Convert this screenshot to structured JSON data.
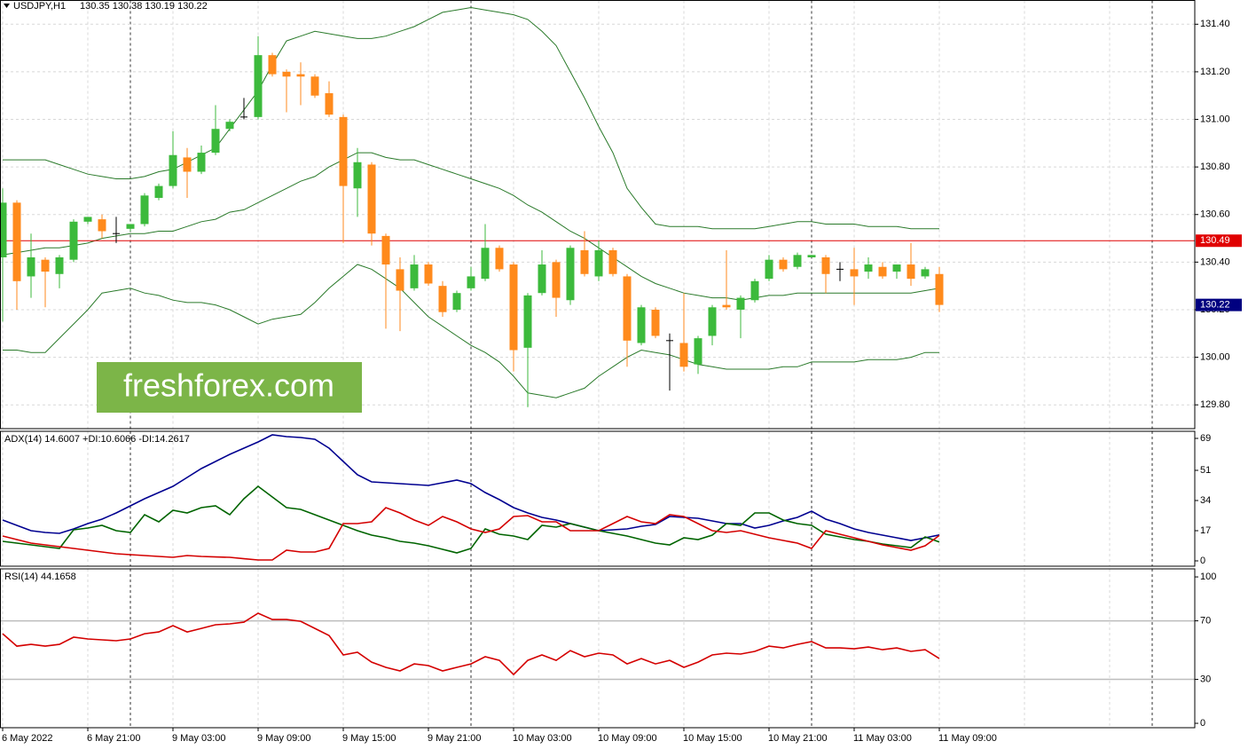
{
  "chart_data": [
    {
      "type": "candlestick",
      "title": "USDJPY,H1",
      "ohlc_label": "130.35 130.38 130.19 130.22",
      "watermark": "freshforex.com",
      "categories": [
        "6 May 2022",
        null,
        null,
        null,
        null,
        null,
        "6 May 21:00",
        null,
        null,
        null,
        null,
        null,
        "9 May 03:00",
        null,
        null,
        null,
        null,
        null,
        "9 May 09:00",
        null,
        null,
        null,
        null,
        null,
        "9 May 15:00",
        null,
        null,
        null,
        null,
        null,
        "9 May 21:00",
        null,
        null,
        null,
        null,
        null,
        "10 May 03:00",
        null,
        null,
        null,
        null,
        null,
        "10 May 09:00",
        null,
        null,
        null,
        null,
        null,
        "10 May 15:00",
        null,
        null,
        null,
        null,
        null,
        "10 May 21:00",
        null,
        null,
        null,
        null,
        null,
        "11 May 03:00",
        null,
        null,
        null,
        null,
        null,
        "11 May 09:00"
      ],
      "open": [
        130.42,
        130.65,
        130.34,
        130.41,
        130.35,
        130.41,
        130.57,
        130.58,
        130.52,
        130.54,
        130.56,
        130.67,
        130.72,
        130.84,
        130.78,
        130.86,
        130.96,
        131.01,
        131.01,
        131.27,
        131.2,
        131.19,
        131.18,
        131.11,
        131.01,
        130.71,
        130.81,
        130.51,
        130.37,
        130.29,
        130.39,
        130.3,
        130.2,
        130.29,
        130.33,
        130.46,
        130.39,
        130.04,
        130.27,
        130.4,
        130.24,
        130.45,
        130.34,
        130.45,
        130.34,
        130.06,
        130.2,
        130.07,
        130.06,
        129.97,
        130.09,
        130.22,
        130.2,
        130.24,
        130.33,
        130.41,
        130.38,
        130.42,
        130.42,
        130.37,
        130.37,
        130.36,
        130.38,
        130.36,
        130.39,
        130.34,
        130.35
      ],
      "high": [
        130.71,
        130.66,
        130.52,
        130.42,
        130.43,
        130.58,
        130.59,
        130.6,
        130.59,
        130.56,
        130.69,
        130.73,
        130.95,
        130.88,
        130.89,
        131.06,
        131.0,
        131.09,
        131.35,
        131.28,
        131.21,
        131.24,
        131.19,
        131.16,
        131.02,
        130.88,
        130.82,
        130.52,
        130.42,
        130.43,
        130.4,
        130.32,
        130.28,
        130.38,
        130.56,
        130.47,
        130.4,
        130.27,
        130.45,
        130.41,
        130.47,
        130.53,
        130.49,
        130.46,
        130.35,
        130.22,
        130.21,
        130.1,
        130.27,
        130.09,
        130.22,
        130.45,
        130.26,
        130.33,
        130.43,
        130.42,
        130.44,
        130.43,
        130.43,
        130.4,
        130.46,
        130.42,
        130.4,
        130.39,
        130.48,
        130.38,
        130.38
      ],
      "low": [
        130.15,
        130.2,
        130.25,
        130.21,
        130.29,
        130.4,
        130.56,
        130.5,
        130.48,
        130.53,
        130.55,
        130.66,
        130.71,
        130.67,
        130.77,
        130.85,
        130.95,
        131.0,
        131.0,
        131.18,
        131.03,
        131.06,
        131.09,
        131.01,
        130.48,
        130.59,
        130.47,
        130.12,
        130.11,
        130.28,
        130.3,
        130.17,
        130.19,
        130.28,
        130.32,
        130.36,
        129.94,
        129.79,
        130.26,
        130.17,
        130.22,
        130.34,
        130.32,
        130.34,
        129.96,
        130.05,
        130.08,
        129.86,
        129.94,
        129.93,
        130.05,
        130.2,
        130.08,
        130.23,
        130.32,
        130.36,
        130.37,
        130.42,
        130.27,
        130.32,
        130.22,
        130.33,
        130.33,
        130.33,
        130.3,
        130.33,
        130.19
      ],
      "close": [
        130.65,
        130.32,
        130.42,
        130.36,
        130.42,
        130.57,
        130.59,
        130.53,
        130.52,
        130.56,
        130.68,
        130.72,
        130.85,
        130.78,
        130.86,
        130.96,
        130.99,
        131.01,
        131.27,
        131.19,
        131.18,
        131.18,
        131.1,
        131.02,
        130.72,
        130.82,
        130.52,
        130.39,
        130.28,
        130.39,
        130.31,
        130.19,
        130.27,
        130.34,
        130.46,
        130.37,
        130.03,
        130.26,
        130.39,
        130.25,
        130.46,
        130.35,
        130.45,
        130.35,
        130.07,
        130.21,
        130.09,
        130.07,
        129.96,
        130.08,
        130.21,
        130.21,
        130.25,
        130.32,
        130.41,
        130.37,
        130.43,
        130.43,
        130.35,
        130.37,
        130.34,
        130.39,
        130.34,
        130.39,
        130.33,
        130.37,
        130.22
      ],
      "up_color": "#3cba3c",
      "down_color": "#ff8a1c",
      "series": [
        {
          "color": "#2a7a2a",
          "values": [
            130.83,
            130.83,
            130.83,
            130.83,
            130.81,
            130.79,
            130.77,
            130.76,
            130.75,
            130.75,
            130.76,
            130.78,
            130.79,
            130.82,
            130.85,
            130.88,
            130.96,
            131.04,
            131.12,
            131.23,
            131.33,
            131.35,
            131.37,
            131.36,
            131.35,
            131.34,
            131.34,
            131.35,
            131.37,
            131.39,
            131.42,
            131.45,
            131.46,
            131.47,
            131.46,
            131.45,
            131.44,
            131.42,
            131.37,
            131.31,
            131.2,
            131.09,
            130.97,
            130.86,
            130.71,
            130.63,
            130.56,
            130.55,
            130.55,
            130.55,
            130.54,
            130.54,
            130.54,
            130.54,
            130.55,
            130.56,
            130.57,
            130.57,
            130.56,
            130.56,
            130.56,
            130.55,
            130.55,
            130.55,
            130.54,
            130.54,
            130.54
          ]
        },
        {
          "color": "#2a7a2a",
          "values": [
            130.43,
            130.44,
            130.45,
            130.46,
            130.46,
            130.47,
            130.48,
            130.5,
            130.51,
            130.52,
            130.52,
            130.53,
            130.53,
            130.55,
            130.57,
            130.58,
            130.61,
            130.62,
            130.65,
            130.68,
            130.71,
            130.74,
            130.76,
            130.8,
            130.83,
            130.86,
            130.86,
            130.84,
            130.83,
            130.83,
            130.81,
            130.79,
            130.77,
            130.75,
            130.73,
            130.71,
            130.68,
            130.64,
            130.61,
            130.57,
            130.53,
            130.5,
            130.46,
            130.42,
            130.38,
            130.34,
            130.31,
            130.29,
            130.27,
            130.26,
            130.25,
            130.25,
            130.24,
            130.25,
            130.26,
            130.26,
            130.27,
            130.27,
            130.27,
            130.27,
            130.27,
            130.27,
            130.27,
            130.27,
            130.27,
            130.28,
            130.29
          ]
        },
        {
          "color": "#2a7a2a",
          "values": [
            130.03,
            130.03,
            130.02,
            130.02,
            130.08,
            130.14,
            130.2,
            130.27,
            130.28,
            130.29,
            130.27,
            130.26,
            130.24,
            130.23,
            130.23,
            130.22,
            130.2,
            130.17,
            130.14,
            130.16,
            130.17,
            130.18,
            130.23,
            130.29,
            130.34,
            130.39,
            130.37,
            130.33,
            130.29,
            130.23,
            130.17,
            130.13,
            130.09,
            130.05,
            130.02,
            129.98,
            129.92,
            129.85,
            129.84,
            129.83,
            129.85,
            129.87,
            129.92,
            129.96,
            130.0,
            130.03,
            130.02,
            130.01,
            129.99,
            129.97,
            129.96,
            129.95,
            129.95,
            129.95,
            129.95,
            129.96,
            129.96,
            129.98,
            129.98,
            129.98,
            129.98,
            129.99,
            129.99,
            129.99,
            130.0,
            130.02,
            130.02
          ]
        }
      ],
      "hline": {
        "value": 130.49,
        "color": "#e00000"
      },
      "last_price": 130.22,
      "last_color": "#000080",
      "ylim": [
        129.7,
        131.5
      ],
      "grid": true,
      "yticks": [
        {
          "value": 131.4,
          "label": "131.40"
        },
        {
          "value": 131.2,
          "label": "131.20"
        },
        {
          "value": 131.0,
          "label": "131.00"
        },
        {
          "value": 130.8,
          "label": "130.80"
        },
        {
          "value": 130.6,
          "label": "130.60"
        },
        {
          "value": 130.4,
          "label": "130.40"
        },
        {
          "value": 130.2,
          "label": "130.20"
        },
        {
          "value": 130.0,
          "label": "130.00"
        },
        {
          "value": 129.8,
          "label": "129.80"
        }
      ]
    },
    {
      "type": "line",
      "title": "ADX(14) 14.6007 +DI:10.6066 -DI:14.2617",
      "ylim": [
        -3,
        73
      ],
      "yticks": [
        69,
        51,
        34,
        17,
        0
      ],
      "grid": false,
      "series": [
        {
          "color": "#000090",
          "values": [
            23,
            20,
            17,
            16,
            15.5,
            18,
            21,
            23.5,
            27,
            31,
            35,
            38.5,
            42,
            47,
            52,
            56,
            60,
            63.5,
            67,
            71,
            70,
            69.5,
            68.5,
            63.5,
            56,
            48.5,
            44.5,
            44,
            43.5,
            43,
            42.5,
            44,
            45.5,
            43.5,
            38.5,
            34.5,
            30,
            27,
            24.5,
            23,
            21,
            19,
            17,
            17.5,
            18,
            19.5,
            20.5,
            25,
            24.5,
            24,
            22.5,
            21,
            21,
            18.5,
            20,
            22.5,
            24.5,
            28,
            23.5,
            21,
            18,
            16,
            14.5,
            13,
            11.5,
            13,
            14.6
          ]
        },
        {
          "color": "#006400",
          "values": [
            11,
            10,
            9,
            8,
            7,
            17.5,
            18.5,
            20,
            17,
            16,
            26,
            22,
            28.5,
            27,
            30,
            31,
            26,
            35,
            42,
            36,
            30,
            29,
            26,
            23,
            20,
            17,
            14.5,
            13,
            11,
            10,
            8.5,
            6.5,
            4.5,
            7,
            18,
            15,
            14,
            12,
            20,
            19,
            21,
            19,
            17,
            15.5,
            14,
            12,
            10,
            9,
            13,
            12,
            14.5,
            21,
            20,
            27,
            27,
            23,
            21,
            20,
            15,
            13.5,
            12,
            11,
            9.5,
            8.5,
            7.5,
            13.5,
            10.6
          ]
        },
        {
          "color": "#d40000",
          "values": [
            14,
            12,
            10,
            9,
            8,
            7,
            6,
            5,
            4,
            3.5,
            3,
            2.5,
            2,
            3,
            2.5,
            2.2,
            2,
            1.2,
            0.5,
            0.5,
            6,
            5,
            5,
            7,
            21,
            21,
            22,
            30,
            27,
            23,
            20,
            25,
            22,
            18,
            16,
            18,
            25,
            25.5,
            22,
            22,
            17,
            17,
            17,
            21,
            25,
            22,
            21,
            26,
            25,
            21,
            17,
            16,
            17,
            15,
            13,
            11.5,
            10,
            7,
            17,
            15,
            13,
            11,
            9,
            7.5,
            6,
            8.5,
            14.3
          ]
        }
      ]
    },
    {
      "type": "line",
      "title": "RSI(14) 44.1658",
      "ylim": [
        -3,
        105.5
      ],
      "yticks": [
        100,
        70,
        30,
        0
      ],
      "levels": [
        70,
        30
      ],
      "grid": false,
      "series": [
        {
          "color": "#d40000",
          "values": [
            61.2,
            52.7,
            53.9,
            52.7,
            53.9,
            58.8,
            57.6,
            57.0,
            56.4,
            57.6,
            61.2,
            62.4,
            66.7,
            62.4,
            64.8,
            67.3,
            67.9,
            69.1,
            75.2,
            70.9,
            70.9,
            69.7,
            64.8,
            60.0,
            46.7,
            48.5,
            41.8,
            38.2,
            35.8,
            40.6,
            39.4,
            35.8,
            38.2,
            40.6,
            45.5,
            43.0,
            33.3,
            43.0,
            46.7,
            43.0,
            49.7,
            45.5,
            47.9,
            46.7,
            40.6,
            44.2,
            40.6,
            43.0,
            38.2,
            41.8,
            46.7,
            47.9,
            47.3,
            49.1,
            52.7,
            51.5,
            53.9,
            55.8,
            51.5,
            51.5,
            50.9,
            52.1,
            50.3,
            51.5,
            49.1,
            50.3,
            44.2
          ]
        }
      ]
    }
  ]
}
